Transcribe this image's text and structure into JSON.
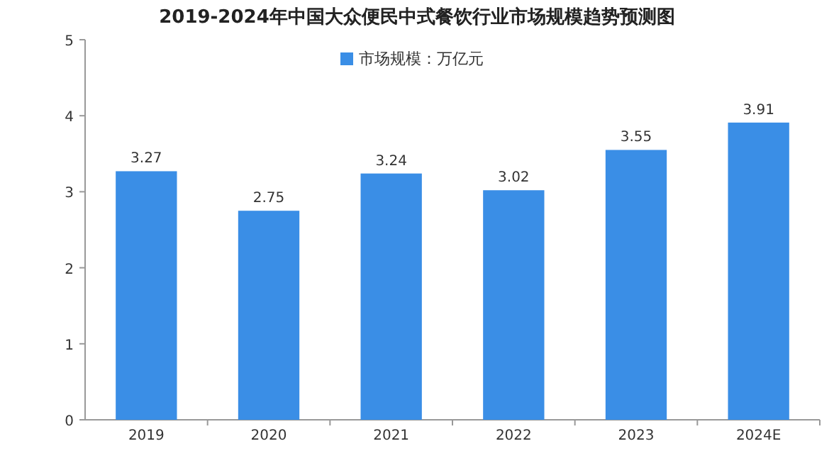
{
  "chart_data": {
    "type": "bar",
    "title": "2019-2024年中国大众便民中式餐饮行业市场规模趋势预测图",
    "categories": [
      "2019",
      "2020",
      "2021",
      "2022",
      "2023",
      "2024E"
    ],
    "series": [
      {
        "name": "市场规模：万亿元",
        "color": "#3a8ee6",
        "values": [
          3.27,
          2.75,
          3.24,
          3.02,
          3.55,
          3.91
        ]
      }
    ],
    "ylim": [
      0,
      5
    ],
    "yticks": [
      0,
      1,
      2,
      3,
      4,
      5
    ],
    "data_labels": true,
    "legend": "top",
    "grid": false
  }
}
